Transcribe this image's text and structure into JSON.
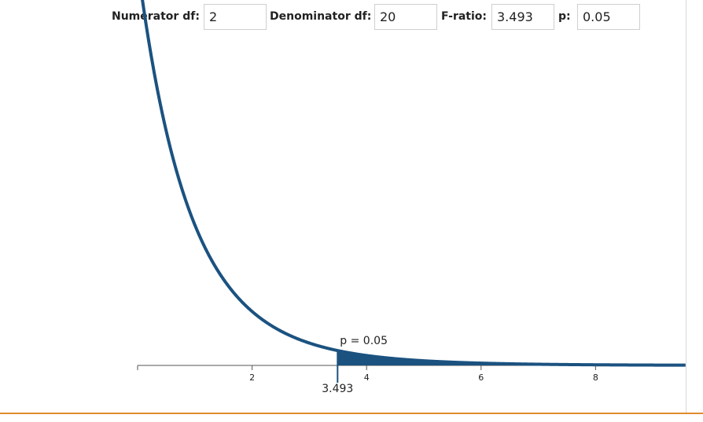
{
  "controls": {
    "numerator_label": "Numerator df:",
    "numerator_value": "2",
    "denominator_label": "Denominator df:",
    "denominator_value": "20",
    "fratio_label": "F-ratio:",
    "fratio_value": "3.493",
    "p_label": "p:",
    "p_value": "0.05"
  },
  "colors": {
    "curve": "#1b5280",
    "tail_fill": "#1b5280",
    "axis": "#555555",
    "bottom_rule": "#e08a2c"
  },
  "chart_data": {
    "type": "area",
    "distribution": "F",
    "df1": 2,
    "df2": 20,
    "critical_value": 3.493,
    "critical_value_label": "3.493",
    "p": 0.05,
    "p_label": "p = 0.05",
    "xlim": [
      0,
      9.6
    ],
    "x_ticks": [
      2,
      4,
      6,
      8
    ],
    "x_tick_labels": [
      "2",
      "4",
      "6",
      "8"
    ],
    "grid": false
  }
}
